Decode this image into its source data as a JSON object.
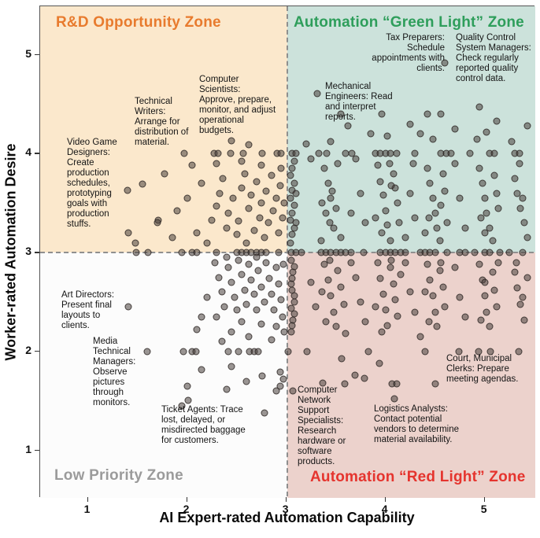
{
  "colors": {
    "quad_top_left_bg": "#FBE8CC",
    "quad_top_right_bg": "#CCE2DB",
    "quad_bottom_left_bg": "#FCFCFC",
    "quad_bottom_right_bg": "#ECD2CC",
    "zone_rd_title": "#E87B2E",
    "zone_green_title": "#2E9E5B",
    "zone_low_title": "#9B9B9B",
    "zone_red_title": "#E5342E",
    "marker_fill": "rgba(72,63,60,0.55)",
    "dashed_line": "#8f8f8f"
  },
  "zones": {
    "top_left": {
      "label": "R&D Opportunity Zone"
    },
    "top_right": {
      "label": "Automation “Green Light” Zone"
    },
    "bottom_left": {
      "label": "Low Priority Zone"
    },
    "bottom_right": {
      "label": "Automation “Red Light” Zone"
    }
  },
  "annotations": {
    "tax_preparers": {
      "text": "Tax Preparers: Schedule appointments with clients."
    },
    "quality_control": {
      "text": "Quality Control System Managers: Check regularly reported quality control data."
    },
    "mechanical_engineers": {
      "text": "Mechanical Engineers: Read and interpret reports."
    },
    "computer_scientists": {
      "text": "Computer Scientists: Approve, prepare, monitor, and adjust operational budgets."
    },
    "technical_writers": {
      "text": "Technical Writers: Arrange for distribution of material."
    },
    "video_game_designers": {
      "text": "Video Game Designers: Create production schedules, prototyping goals with production stuffs."
    },
    "art_directors": {
      "text": "Art Directors: Present final layouts to clients."
    },
    "media_technical_managers": {
      "text": "Media Technical Managers: Observe pictures through monitors."
    },
    "ticket_agents": {
      "text": "Ticket Agents: Trace lost, delayed, or misdirected baggage for customers."
    },
    "computer_network_specialists": {
      "text": "Computer Network Support Specialists: Research hardware or software products."
    },
    "logistics_analysts": {
      "text": "Logistics Analysts: Contact potential vendors to determine material availability."
    },
    "court_clerks": {
      "text": "Court, Municipal Clerks: Prepare meeting agendas."
    }
  },
  "chart_data": {
    "type": "scatter",
    "title": "",
    "xlabel": "AI Expert-rated Automation Capability",
    "ylabel": "Worker-rated Automation Desire",
    "xlim": [
      0.52,
      5.51
    ],
    "ylim": [
      0.52,
      5.49
    ],
    "xticks": [
      1,
      2,
      3,
      4,
      5
    ],
    "yticks": [
      1,
      2,
      3,
      4,
      5
    ],
    "grid": false,
    "quadrant_split": {
      "x": 3,
      "y": 3
    },
    "points": [
      [
        1.97,
        4
      ],
      [
        2.27,
        4
      ],
      [
        2.31,
        4
      ],
      [
        2.44,
        4
      ],
      [
        2.57,
        4
      ],
      [
        2.76,
        4
      ],
      [
        2.91,
        4
      ],
      [
        2.95,
        4
      ],
      [
        3.06,
        4
      ],
      [
        3.1,
        4
      ],
      [
        3.33,
        4
      ],
      [
        3.41,
        4
      ],
      [
        3.6,
        4
      ],
      [
        3.66,
        4
      ],
      [
        3.9,
        4
      ],
      [
        3.95,
        4
      ],
      [
        4.0,
        4
      ],
      [
        4.05,
        4
      ],
      [
        4.11,
        4
      ],
      [
        4.3,
        4
      ],
      [
        4.56,
        4
      ],
      [
        4.61,
        4
      ],
      [
        4.66,
        4
      ],
      [
        4.85,
        4
      ],
      [
        5.05,
        4
      ],
      [
        5.1,
        4
      ],
      [
        5.3,
        4
      ],
      [
        5.35,
        4
      ],
      [
        1.49,
        3
      ],
      [
        1.61,
        3
      ],
      [
        1.95,
        3
      ],
      [
        2.05,
        3
      ],
      [
        2.1,
        3
      ],
      [
        2.3,
        3
      ],
      [
        2.5,
        3
      ],
      [
        2.55,
        3
      ],
      [
        2.6,
        3
      ],
      [
        2.65,
        3
      ],
      [
        2.7,
        3
      ],
      [
        2.75,
        3
      ],
      [
        2.8,
        3
      ],
      [
        2.92,
        3
      ],
      [
        3.05,
        3
      ],
      [
        3.1,
        3
      ],
      [
        3.15,
        3
      ],
      [
        3.35,
        3
      ],
      [
        3.4,
        3
      ],
      [
        3.45,
        3
      ],
      [
        3.5,
        3
      ],
      [
        3.55,
        3
      ],
      [
        3.6,
        3
      ],
      [
        3.65,
        3
      ],
      [
        3.78,
        3
      ],
      [
        3.95,
        3
      ],
      [
        4.0,
        3
      ],
      [
        4.05,
        3
      ],
      [
        4.1,
        3
      ],
      [
        4.15,
        3
      ],
      [
        4.2,
        3
      ],
      [
        4.35,
        3
      ],
      [
        4.4,
        3
      ],
      [
        4.45,
        3
      ],
      [
        4.5,
        3
      ],
      [
        4.62,
        3
      ],
      [
        4.75,
        3
      ],
      [
        4.8,
        3
      ],
      [
        4.9,
        3
      ],
      [
        5.0,
        3
      ],
      [
        5.05,
        3
      ],
      [
        5.15,
        3
      ],
      [
        5.25,
        3
      ],
      [
        5.38,
        3
      ],
      [
        1.6,
        2
      ],
      [
        1.96,
        2
      ],
      [
        2.05,
        2
      ],
      [
        2.09,
        2
      ],
      [
        2.42,
        2
      ],
      [
        2.52,
        2
      ],
      [
        2.63,
        2
      ],
      [
        2.68,
        2
      ],
      [
        2.72,
        2
      ],
      [
        3.02,
        2
      ],
      [
        3.21,
        2
      ],
      [
        3.83,
        2
      ],
      [
        4.4,
        2
      ],
      [
        4.74,
        2
      ],
      [
        4.94,
        2
      ],
      [
        5.06,
        2
      ],
      [
        5.34,
        2
      ],
      [
        1.4,
        3.63
      ],
      [
        1.55,
        3.69
      ],
      [
        1.77,
        3.8
      ],
      [
        1.71,
        3.33
      ],
      [
        1.41,
        3.2
      ],
      [
        1.48,
        3.1
      ],
      [
        1.85,
        3.15
      ],
      [
        1.9,
        3.42
      ],
      [
        2.0,
        3.55
      ],
      [
        2.05,
        3.88
      ],
      [
        2.1,
        3.2
      ],
      [
        2.15,
        3.7
      ],
      [
        2.2,
        3.1
      ],
      [
        2.25,
        3.33
      ],
      [
        2.3,
        3.47
      ],
      [
        2.3,
        3.9
      ],
      [
        2.33,
        3.6
      ],
      [
        2.36,
        3.75
      ],
      [
        2.4,
        3.25
      ],
      [
        2.42,
        3.4
      ],
      [
        2.45,
        4.13
      ],
      [
        2.46,
        3.55
      ],
      [
        2.5,
        3.18
      ],
      [
        2.52,
        3.32
      ],
      [
        2.55,
        3.65
      ],
      [
        2.55,
        3.92
      ],
      [
        2.58,
        3.8
      ],
      [
        2.6,
        3.1
      ],
      [
        2.62,
        3.45
      ],
      [
        2.62,
        4.09
      ],
      [
        2.65,
        3.58
      ],
      [
        2.68,
        3.22
      ],
      [
        2.7,
        3.72
      ],
      [
        2.73,
        3.35
      ],
      [
        2.75,
        3.5
      ],
      [
        2.75,
        3.88
      ],
      [
        2.78,
        3.15
      ],
      [
        2.8,
        3.62
      ],
      [
        2.82,
        3.3
      ],
      [
        2.85,
        3.78
      ],
      [
        2.87,
        3.42
      ],
      [
        2.9,
        3.55
      ],
      [
        2.92,
        3.2
      ],
      [
        2.94,
        3.68
      ],
      [
        2.95,
        3.85
      ],
      [
        2.96,
        3.35
      ],
      [
        2.98,
        3.5
      ],
      [
        1.7,
        3.3
      ],
      [
        4.6,
        4.92
      ],
      [
        3.31,
        4.61
      ],
      [
        3.55,
        4.4
      ],
      [
        3.96,
        4.4
      ],
      [
        4.42,
        4.4
      ],
      [
        4.56,
        4.4
      ],
      [
        4.95,
        4.47
      ],
      [
        5.12,
        4.33
      ],
      [
        4.7,
        4.25
      ],
      [
        5.43,
        4.28
      ],
      [
        4.92,
        4.15
      ],
      [
        5.27,
        4.12
      ],
      [
        3.62,
        4.28
      ],
      [
        3.85,
        4.2
      ],
      [
        4.25,
        4.3
      ],
      [
        3.45,
        4.12
      ],
      [
        4.02,
        4.18
      ],
      [
        4.48,
        4.15
      ],
      [
        5.02,
        4.22
      ],
      [
        4.35,
        4.2
      ],
      [
        3.2,
        4.1
      ],
      [
        3.04,
        3.1
      ],
      [
        3.06,
        3.18
      ],
      [
        3.08,
        3.25
      ],
      [
        3.04,
        3.33
      ],
      [
        3.06,
        3.4
      ],
      [
        3.08,
        3.48
      ],
      [
        3.04,
        3.55
      ],
      [
        3.06,
        3.63
      ],
      [
        3.08,
        3.7
      ],
      [
        3.04,
        3.78
      ],
      [
        3.06,
        3.85
      ],
      [
        3.08,
        3.92
      ],
      [
        3.1,
        3.3
      ],
      [
        3.1,
        3.6
      ],
      [
        3.38,
        3.85
      ],
      [
        3.42,
        3.7
      ],
      [
        3.45,
        3.55
      ],
      [
        3.4,
        3.4
      ],
      [
        3.48,
        3.25
      ],
      [
        3.35,
        3.12
      ],
      [
        3.52,
        3.9
      ],
      [
        3.5,
        3.45
      ],
      [
        3.44,
        3.3
      ],
      [
        3.55,
        3.15
      ],
      [
        3.46,
        3.62
      ],
      [
        3.36,
        3.5
      ],
      [
        3.92,
        3.88
      ],
      [
        3.95,
        3.72
      ],
      [
        3.98,
        3.58
      ],
      [
        4.0,
        3.42
      ],
      [
        4.02,
        3.28
      ],
      [
        4.05,
        3.12
      ],
      [
        4.08,
        3.8
      ],
      [
        4.1,
        3.65
      ],
      [
        4.12,
        3.5
      ],
      [
        3.96,
        3.2
      ],
      [
        4.04,
        3.9
      ],
      [
        3.9,
        3.35
      ],
      [
        4.14,
        3.3
      ],
      [
        4.06,
        3.68
      ],
      [
        4.42,
        3.85
      ],
      [
        4.45,
        3.7
      ],
      [
        4.48,
        3.55
      ],
      [
        4.5,
        3.4
      ],
      [
        4.52,
        3.25
      ],
      [
        4.55,
        3.12
      ],
      [
        4.58,
        3.8
      ],
      [
        4.6,
        3.62
      ],
      [
        4.44,
        3.35
      ],
      [
        4.56,
        3.48
      ],
      [
        4.4,
        3.2
      ],
      [
        4.62,
        3.3
      ],
      [
        4.95,
        3.85
      ],
      [
        4.98,
        3.7
      ],
      [
        5.0,
        3.55
      ],
      [
        5.02,
        3.4
      ],
      [
        5.05,
        3.25
      ],
      [
        5.08,
        3.12
      ],
      [
        5.1,
        3.78
      ],
      [
        5.12,
        3.6
      ],
      [
        4.96,
        3.35
      ],
      [
        5.14,
        3.45
      ],
      [
        5.0,
        3.2
      ],
      [
        5.3,
        3.75
      ],
      [
        5.33,
        3.6
      ],
      [
        5.36,
        3.45
      ],
      [
        5.4,
        3.3
      ],
      [
        5.43,
        3.15
      ],
      [
        5.35,
        3.9
      ],
      [
        5.38,
        3.55
      ],
      [
        3.7,
        3.95
      ],
      [
        3.75,
        3.6
      ],
      [
        3.8,
        3.3
      ],
      [
        3.25,
        3.95
      ],
      [
        4.25,
        3.6
      ],
      [
        4.3,
        3.35
      ],
      [
        4.75,
        3.55
      ],
      [
        4.8,
        3.25
      ],
      [
        4.2,
        3.15
      ],
      [
        3.65,
        3.4
      ],
      [
        4.7,
        3.9
      ],
      [
        4.28,
        3.9
      ],
      [
        1.41,
        2.45
      ],
      [
        2.28,
        2.9
      ],
      [
        2.32,
        2.75
      ],
      [
        2.35,
        2.6
      ],
      [
        2.38,
        2.45
      ],
      [
        2.42,
        2.85
      ],
      [
        2.45,
        2.7
      ],
      [
        2.48,
        2.55
      ],
      [
        2.3,
        2.35
      ],
      [
        2.52,
        2.92
      ],
      [
        2.55,
        2.78
      ],
      [
        2.58,
        2.62
      ],
      [
        2.6,
        2.48
      ],
      [
        2.62,
        2.88
      ],
      [
        2.65,
        2.72
      ],
      [
        2.68,
        2.58
      ],
      [
        2.7,
        2.42
      ],
      [
        2.72,
        2.82
      ],
      [
        2.75,
        2.65
      ],
      [
        2.78,
        2.5
      ],
      [
        2.8,
        2.9
      ],
      [
        2.83,
        2.74
      ],
      [
        2.85,
        2.58
      ],
      [
        2.88,
        2.42
      ],
      [
        2.9,
        2.85
      ],
      [
        2.92,
        2.68
      ],
      [
        2.95,
        2.52
      ],
      [
        2.97,
        2.88
      ],
      [
        2.55,
        2.3
      ],
      [
        2.75,
        2.28
      ],
      [
        2.9,
        2.25
      ],
      [
        2.45,
        2.2
      ],
      [
        2.62,
        2.15
      ],
      [
        2.35,
        2.1
      ],
      [
        2.85,
        2.12
      ],
      [
        2.2,
        2.55
      ],
      [
        2.15,
        2.35
      ],
      [
        2.96,
        2.35
      ],
      [
        2.4,
        2.95
      ],
      [
        2.7,
        2.95
      ],
      [
        2.1,
        2.22
      ],
      [
        2.98,
        2.2
      ],
      [
        2.5,
        2.42
      ],
      [
        2.15,
        1.82
      ],
      [
        2.45,
        1.85
      ],
      [
        2.76,
        1.75
      ],
      [
        2.94,
        1.79
      ],
      [
        2.94,
        1.65
      ],
      [
        2.6,
        1.7
      ],
      [
        2.9,
        1.6
      ],
      [
        2.4,
        1.62
      ],
      [
        2.0,
        1.65
      ],
      [
        2.01,
        1.51
      ],
      [
        2.78,
        1.38
      ],
      [
        1.95,
        1.45
      ],
      [
        2.97,
        1.72
      ],
      [
        3.05,
        2.92
      ],
      [
        3.07,
        2.8
      ],
      [
        3.05,
        2.68
      ],
      [
        3.08,
        2.56
      ],
      [
        3.05,
        2.44
      ],
      [
        3.07,
        2.32
      ],
      [
        3.05,
        2.2
      ],
      [
        3.08,
        2.86
      ],
      [
        3.06,
        2.62
      ],
      [
        3.08,
        2.38
      ],
      [
        3.06,
        2.74
      ],
      [
        3.08,
        2.5
      ],
      [
        3.06,
        2.26
      ],
      [
        3.38,
        2.88
      ],
      [
        3.42,
        2.72
      ],
      [
        3.45,
        2.56
      ],
      [
        3.48,
        2.4
      ],
      [
        3.5,
        2.25
      ],
      [
        3.52,
        2.82
      ],
      [
        3.55,
        2.65
      ],
      [
        3.4,
        2.3
      ],
      [
        3.36,
        2.6
      ],
      [
        3.58,
        2.48
      ],
      [
        3.44,
        2.92
      ],
      [
        3.92,
        2.9
      ],
      [
        3.95,
        2.74
      ],
      [
        3.98,
        2.58
      ],
      [
        4.0,
        2.42
      ],
      [
        4.02,
        2.26
      ],
      [
        4.05,
        2.85
      ],
      [
        4.08,
        2.68
      ],
      [
        4.1,
        2.52
      ],
      [
        4.12,
        2.36
      ],
      [
        3.96,
        2.2
      ],
      [
        4.15,
        2.78
      ],
      [
        3.9,
        2.45
      ],
      [
        4.06,
        2.92
      ],
      [
        4.42,
        2.88
      ],
      [
        4.45,
        2.72
      ],
      [
        4.48,
        2.56
      ],
      [
        4.5,
        2.4
      ],
      [
        4.52,
        2.25
      ],
      [
        4.55,
        2.82
      ],
      [
        4.58,
        2.65
      ],
      [
        4.6,
        2.45
      ],
      [
        4.44,
        2.3
      ],
      [
        4.56,
        2.9
      ],
      [
        4.4,
        2.6
      ],
      [
        4.95,
        2.88
      ],
      [
        4.98,
        2.72
      ],
      [
        5.0,
        2.56
      ],
      [
        5.02,
        2.4
      ],
      [
        5.05,
        2.25
      ],
      [
        5.08,
        2.8
      ],
      [
        5.1,
        2.62
      ],
      [
        5.12,
        2.45
      ],
      [
        4.96,
        2.32
      ],
      [
        5.14,
        2.9
      ],
      [
        5.0,
        2.7
      ],
      [
        5.3,
        2.8
      ],
      [
        5.33,
        2.64
      ],
      [
        5.36,
        2.48
      ],
      [
        5.4,
        2.32
      ],
      [
        5.43,
        2.75
      ],
      [
        5.38,
        2.55
      ],
      [
        5.32,
        2.9
      ],
      [
        3.7,
        2.75
      ],
      [
        3.75,
        2.5
      ],
      [
        3.8,
        2.3
      ],
      [
        3.25,
        2.7
      ],
      [
        4.25,
        2.6
      ],
      [
        4.3,
        2.4
      ],
      [
        4.75,
        2.55
      ],
      [
        4.8,
        2.35
      ],
      [
        3.65,
        2.9
      ],
      [
        4.2,
        2.9
      ],
      [
        4.7,
        2.85
      ],
      [
        3.3,
        2.45
      ],
      [
        4.35,
        2.15
      ],
      [
        3.6,
        2.18
      ],
      [
        3.56,
        1.93
      ],
      [
        3.94,
        1.88
      ],
      [
        3.69,
        1.76
      ],
      [
        3.79,
        1.73
      ],
      [
        3.37,
        1.68
      ],
      [
        3.59,
        1.67
      ],
      [
        4.07,
        1.67
      ],
      [
        4.11,
        1.67
      ],
      [
        4.5,
        1.67
      ],
      [
        3.07,
        1.6
      ],
      [
        4.09,
        1.52
      ]
    ]
  }
}
